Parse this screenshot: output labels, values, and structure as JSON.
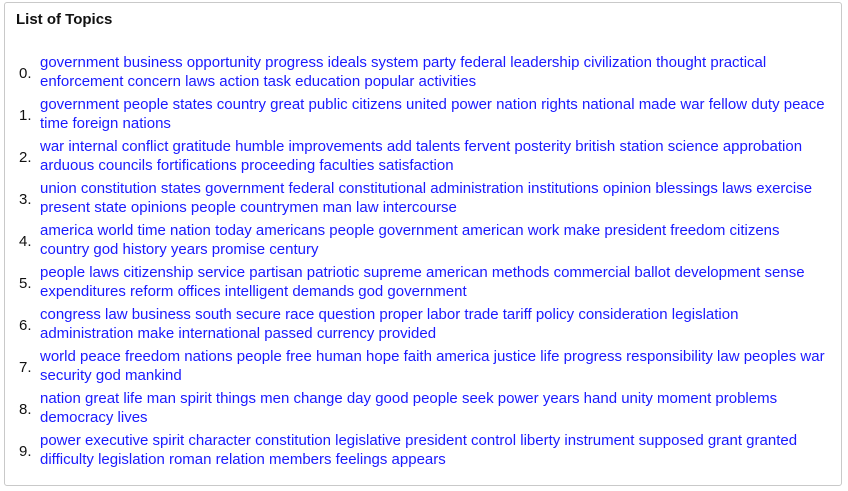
{
  "panel": {
    "title": "List of Topics"
  },
  "topics": [
    {
      "index": "0.",
      "words": "government business opportunity progress ideals system party federal leadership civilization thought practical enforcement concern laws action task education popular activities"
    },
    {
      "index": "1.",
      "words": "government people states country great public citizens united power nation rights national made war fellow duty peace time foreign nations"
    },
    {
      "index": "2.",
      "words": "war internal conflict gratitude humble improvements add talents fervent posterity british station science approbation arduous councils fortifications proceeding faculties satisfaction"
    },
    {
      "index": "3.",
      "words": "union constitution states government federal constitutional administration institutions opinion blessings laws exercise present state opinions people countrymen man law intercourse"
    },
    {
      "index": "4.",
      "words": "america world time nation today americans people government american work make president freedom citizens country god history years promise century"
    },
    {
      "index": "5.",
      "words": "people laws citizenship service partisan patriotic supreme american methods commercial ballot development sense expenditures reform offices intelligent demands god government"
    },
    {
      "index": "6.",
      "words": "congress law business south secure race question proper labor trade tariff policy consideration legislation administration make international passed currency provided"
    },
    {
      "index": "7.",
      "words": "world peace freedom nations people free human hope faith america justice life progress responsibility law peoples war security god mankind"
    },
    {
      "index": "8.",
      "words": "nation great life man spirit things men change day good people seek power years hand unity moment problems democracy lives"
    },
    {
      "index": "9.",
      "words": "power executive spirit character constitution legislative president control liberty instrument supposed grant granted difficulty legislation roman relation members feelings appears"
    }
  ],
  "colors": {
    "link": "#1a1aff",
    "text": "#111111",
    "border": "#c9c9c9"
  }
}
